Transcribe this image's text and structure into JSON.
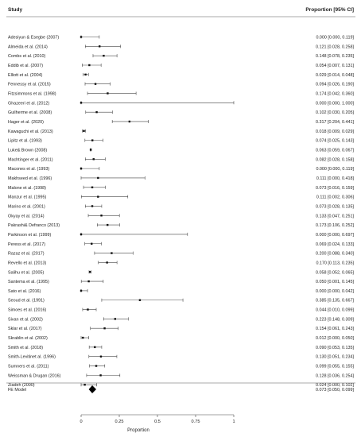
{
  "header": {
    "study_label": "Study",
    "estimate_label": "Proportion [95% CI]"
  },
  "chart_data": {
    "type": "forest",
    "xlabel": "Proportion",
    "xlim": [
      0,
      1
    ],
    "xticks": [
      0,
      0.25,
      0.5,
      0.75,
      1
    ],
    "tick_labels": [
      "0",
      "0.25",
      "0.5",
      "0.75",
      "1"
    ],
    "studies": [
      {
        "name": "Adesiyun & Esegbe (2007)",
        "est": 0.0,
        "lo": 0.0,
        "hi": 0.119,
        "text": "0.000 [0.000, 0.119]"
      },
      {
        "name": "Almeida  et al. (2014)",
        "est": 0.121,
        "lo": 0.028,
        "hi": 0.258,
        "text": "0.121 [0.028, 0.258]"
      },
      {
        "name": "Combs  et al. (2010)",
        "est": 0.148,
        "lo": 0.078,
        "hi": 0.235,
        "text": "0.148 [0.078, 0.235]"
      },
      {
        "name": "Eddib et al. (2007)",
        "est": 0.054,
        "lo": 0.007,
        "hi": 0.131,
        "text": "0.054 [0.007, 0.131]"
      },
      {
        "name": "Elliott et al. (2004)",
        "est": 0.029,
        "lo": 0.014,
        "hi": 0.048,
        "text": "0.029 [0.014, 0.048]"
      },
      {
        "name": "Fennessy et al. (2015)",
        "est": 0.094,
        "lo": 0.026,
        "hi": 0.19,
        "text": "0.094 [0.026, 0.190]"
      },
      {
        "name": "Fitzsimmons et al. (1998)",
        "est": 0.174,
        "lo": 0.042,
        "hi": 0.36,
        "text": "0.174 [0.042, 0.360]"
      },
      {
        "name": "Ghazeeri et al. (2012)",
        "est": 0.0,
        "lo": 0.0,
        "hi": 1.0,
        "text": "0.000 [0.000, 1.000]"
      },
      {
        "name": "Guilherme et al. (2008)",
        "est": 0.102,
        "lo": 0.03,
        "hi": 0.205,
        "text": "0.102 [0.030, 0.205]"
      },
      {
        "name": "Hager et al. (2020)",
        "est": 0.317,
        "lo": 0.204,
        "hi": 0.441,
        "text": "0.317 [0.204, 0.441]"
      },
      {
        "name": "Kawaguchi et al. (2013)",
        "est": 0.018,
        "lo": 0.009,
        "hi": 0.029,
        "text": "0.018 [0.009, 0.029]"
      },
      {
        "name": "Lipitz et al. (1993)",
        "est": 0.074,
        "lo": 0.025,
        "hi": 0.143,
        "text": "0.074 [0.025, 0.143]"
      },
      {
        "name": "Luke& Brown (2008)",
        "est": 0.063,
        "lo": 0.059,
        "hi": 0.067,
        "text": "0.063 [0.059, 0.067]"
      },
      {
        "name": "Machtinger et al. (2011)",
        "est": 0.082,
        "lo": 0.028,
        "hi": 0.158,
        "text": "0.082 [0.028, 0.158]"
      },
      {
        "name": "Macones et al. (1993)",
        "est": 0.0,
        "lo": 0.0,
        "hi": 0.119,
        "text": "0.000 [0.000, 0.119]"
      },
      {
        "name": "Makhseed et al. (1996)",
        "est": 0.111,
        "lo": 0.0,
        "hi": 0.418,
        "text": "0.111 [0.000, 0.418]"
      },
      {
        "name": "Malone et al. (1998)",
        "est": 0.073,
        "lo": 0.016,
        "hi": 0.159,
        "text": "0.073 [0.016, 0.159]"
      },
      {
        "name": "Manzur et al. (1995)",
        "est": 0.111,
        "lo": 0.002,
        "hi": 0.306,
        "text": "0.111 [0.002, 0.306]"
      },
      {
        "name": "Marino et al. (2001)",
        "est": 0.073,
        "lo": 0.028,
        "hi": 0.135,
        "text": "0.073 [0.028, 0.135]"
      },
      {
        "name": "Okyay et al. (2014)",
        "est": 0.133,
        "lo": 0.047,
        "hi": 0.251,
        "text": "0.133 [0.047, 0.251]"
      },
      {
        "name": "Pakrashi& Defranco  (2013)",
        "est": 0.173,
        "lo": 0.106,
        "hi": 0.252,
        "text": "0.173 [0.106, 0.252]"
      },
      {
        "name": "Parkinson et al. (1999)",
        "est": 0.0,
        "lo": 0.0,
        "hi": 0.697,
        "text": "0.000 [0.000, 0.697]"
      },
      {
        "name": "Peress et al. (2017)",
        "est": 0.069,
        "lo": 0.024,
        "hi": 0.133,
        "text": "0.069 [0.024, 0.133]"
      },
      {
        "name": "Razaz et al. (2017)",
        "est": 0.2,
        "lo": 0.088,
        "hi": 0.34,
        "text": "0.200 [0.088, 0.340]"
      },
      {
        "name": "Revello et al. (2013)",
        "est": 0.17,
        "lo": 0.113,
        "hi": 0.235,
        "text": "0.170 [0.113, 0.235]"
      },
      {
        "name": "Salihu et al. (2005)",
        "est": 0.058,
        "lo": 0.052,
        "hi": 0.065,
        "text": "0.058 [0.052, 0.065]"
      },
      {
        "name": "Santema et al. (1995)",
        "est": 0.05,
        "lo": 0.001,
        "hi": 0.145,
        "text": "0.050 [0.001, 0.145]"
      },
      {
        "name": "Sato et al. (2016)",
        "est": 0.0,
        "lo": 0.0,
        "hi": 0.042,
        "text": "0.000 [0.000, 0.042]"
      },
      {
        "name": "Seoud et al. (1991)",
        "est": 0.385,
        "lo": 0.135,
        "hi": 0.667,
        "text": "0.385 [0.135, 0.667]"
      },
      {
        "name": "Simoes et al. (2016)",
        "est": 0.044,
        "lo": 0.01,
        "hi": 0.099,
        "text": "0.044 [0.010, 0.099]"
      },
      {
        "name": "Sivan et al. (2002)",
        "est": 0.223,
        "lo": 0.148,
        "hi": 0.309,
        "text": "0.223 [0.148, 0.309]"
      },
      {
        "name": "Sklar et al. (2017)",
        "est": 0.154,
        "lo": 0.061,
        "hi": 0.243,
        "text": "0.154 [0.061, 0.243]"
      },
      {
        "name": "Skrablin et al. (2002)",
        "est": 0.012,
        "lo": 0.0,
        "hi": 0.05,
        "text": "0.012 [0.000, 0.050]"
      },
      {
        "name": "Smith et al. (2018)",
        "est": 0.09,
        "lo": 0.053,
        "hi": 0.135,
        "text": "0.090 [0.053, 0.135]"
      },
      {
        "name": "Smith-Levitinet al. (1996)",
        "est": 0.13,
        "lo": 0.051,
        "hi": 0.234,
        "text": "0.130 [0.051, 0.234]"
      },
      {
        "name": "Sumners et al. (2011)",
        "est": 0.099,
        "lo": 0.055,
        "hi": 0.155,
        "text": "0.099 [0.055, 0.155]"
      },
      {
        "name": "Weissman & Drugan  (2016)",
        "est": 0.128,
        "lo": 0.036,
        "hi": 0.254,
        "text": "0.128 [0.036, 0.254]"
      },
      {
        "name": "Ziadeh (2000)",
        "est": 0.024,
        "lo": 0.0,
        "hi": 0.102,
        "text": "0.024 [0.000, 0.102]"
      }
    ],
    "summary": {
      "name": "FE Model",
      "est": 0.073,
      "lo": 0.05,
      "hi": 0.099,
      "text": "0.073 [0.050, 0.099]"
    }
  }
}
